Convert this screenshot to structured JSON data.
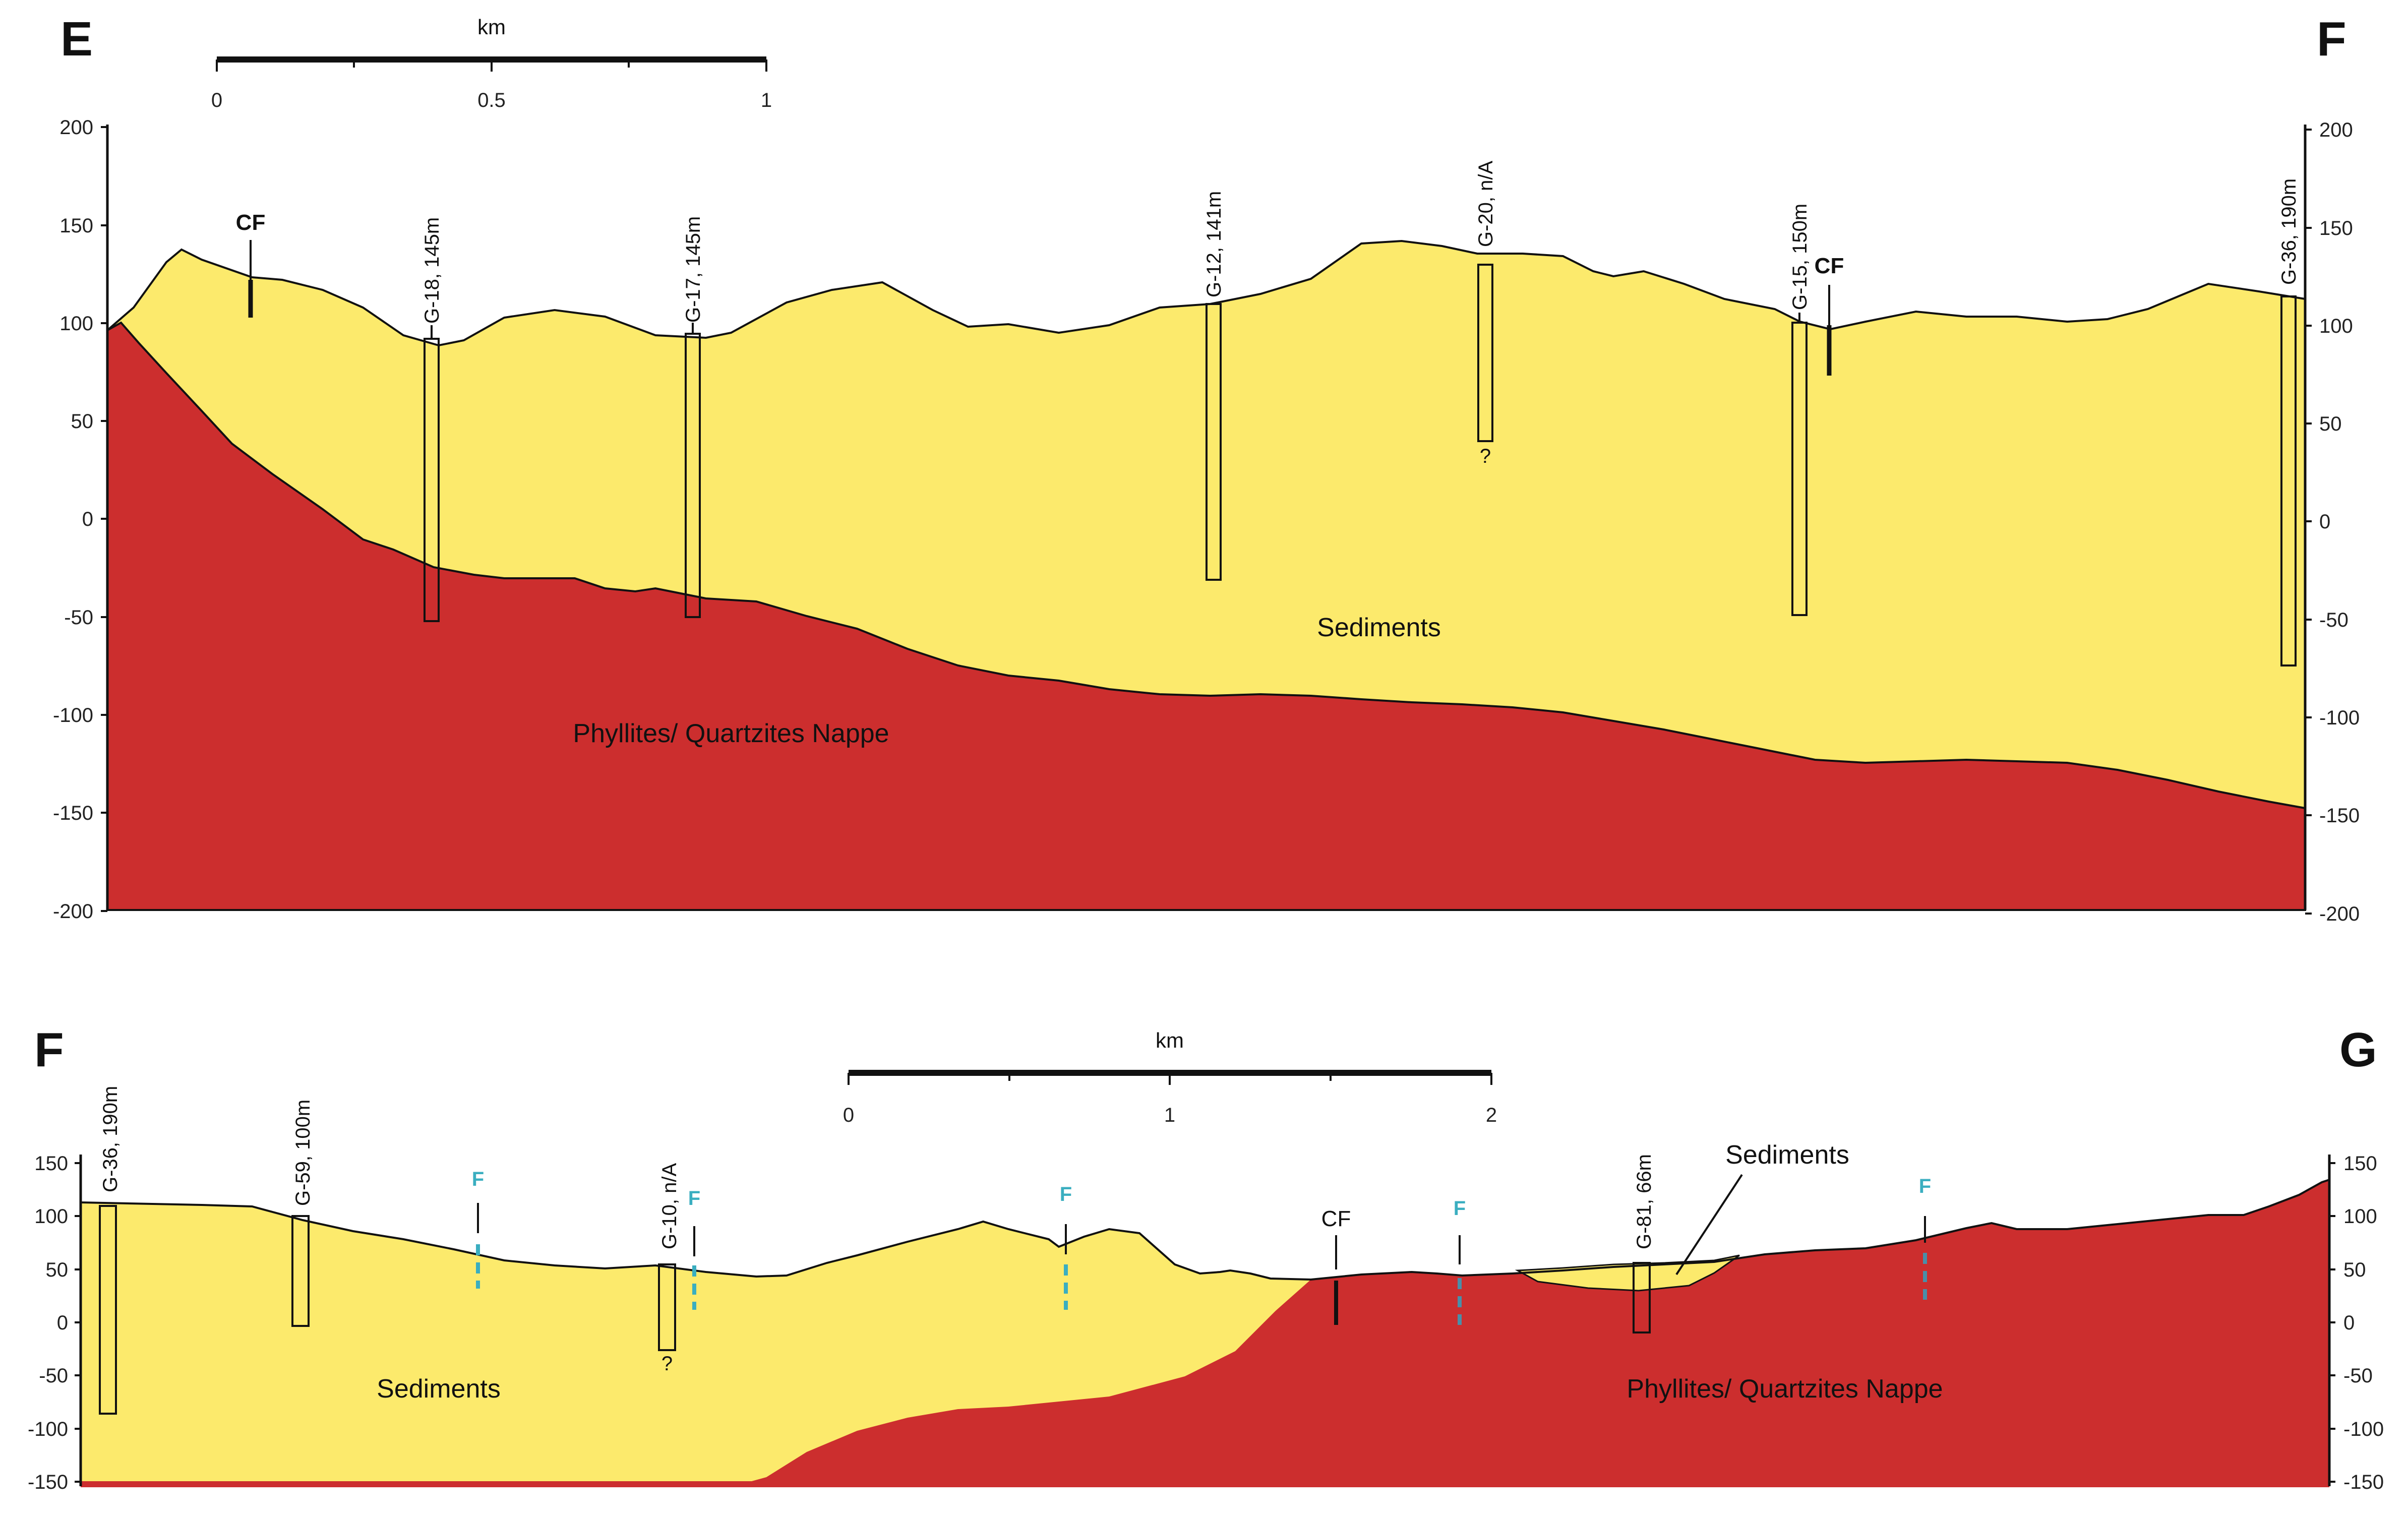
{
  "sections": [
    {
      "id": "EF",
      "corner_left": "E",
      "corner_right": "F",
      "scale_bar": {
        "unit": "km",
        "ticks": [
          "0",
          "0.5",
          "1"
        ]
      },
      "y_axis_ticks": [
        "200",
        "150",
        "100",
        "50",
        "0",
        "-50",
        "-100",
        "-150",
        "-200"
      ],
      "wells": [
        {
          "label": "G-18,  145m"
        },
        {
          "label": "G-17,  145m"
        },
        {
          "label": "G-12,  141m"
        },
        {
          "label": "G-20,  n/A",
          "note": "?"
        },
        {
          "label": "G-15,  150m"
        },
        {
          "label": "G-36,  190m"
        }
      ],
      "markers": [
        "CF",
        "CF"
      ],
      "units": {
        "upper": "Sediments",
        "lower": "Phyllites/ Quartzites Nappe"
      }
    },
    {
      "id": "FG",
      "corner_left": "F",
      "corner_right": "G",
      "scale_bar": {
        "unit": "km",
        "ticks": [
          "0",
          "1",
          "2"
        ]
      },
      "y_axis_ticks": [
        "150",
        "100",
        "50",
        "0",
        "-50",
        "-100",
        "-150"
      ],
      "wells": [
        {
          "label": "G-36,  190m"
        },
        {
          "label": "G-59,  100m"
        },
        {
          "label": "G-10,  n/A",
          "note": "?"
        },
        {
          "label": "G-81,  66m"
        }
      ],
      "markers": [
        "F",
        "F",
        "F",
        "CF",
        "F",
        "F"
      ],
      "units": {
        "left": "Sediments",
        "right": "Phyllites/ Quartzites Nappe",
        "callout": "Sediments"
      }
    }
  ],
  "colors": {
    "sediments": "#fcea6c",
    "phyllites": "#cc2e2e",
    "fault": "#3aaec0"
  }
}
